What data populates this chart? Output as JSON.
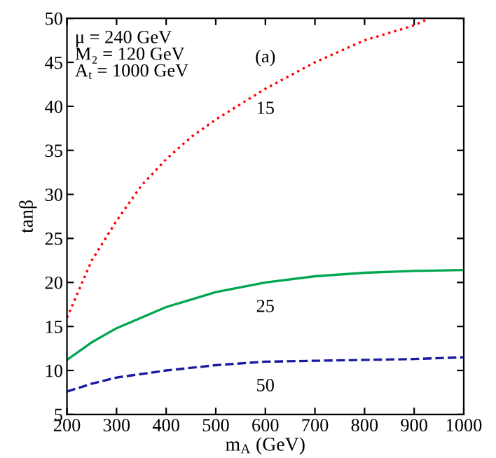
{
  "chart_data": {
    "type": "line",
    "xlabel": "m$_{A}$ (GeV)",
    "ylabel": "tanβ",
    "xlim": [
      200,
      1000
    ],
    "xticks": [
      200,
      300,
      400,
      500,
      600,
      700,
      800,
      900,
      1000
    ],
    "ylim": [
      5,
      50
    ],
    "yticks": [
      5,
      10,
      15,
      20,
      25,
      30,
      35,
      40,
      45,
      50
    ],
    "series": [
      {
        "color": "#ff0000",
        "line_style": "dotted",
        "x": [
          200,
          250,
          300,
          350,
          400,
          450,
          500,
          600,
          700,
          800,
          900,
          930
        ],
        "values": [
          16,
          22.5,
          27,
          31,
          34,
          36.5,
          38.5,
          42,
          45,
          47.5,
          49.2,
          50
        ]
      },
      {
        "color": "#00a651",
        "line_style": "solid",
        "x": [
          200,
          250,
          300,
          400,
          500,
          600,
          700,
          800,
          900,
          1000
        ],
        "values": [
          11.2,
          13.2,
          14.8,
          17.2,
          18.9,
          20,
          20.7,
          21.1,
          21.3,
          21.4
        ]
      },
      {
        "color": "#1a1aa0",
        "line_style": "dashed",
        "x": [
          200,
          250,
          300,
          400,
          500,
          600,
          700,
          800,
          900,
          1000
        ],
        "values": [
          7.6,
          8.5,
          9.2,
          10,
          10.6,
          11,
          11.1,
          11.2,
          11.3,
          11.5
        ]
      }
    ],
    "annotations": [
      "μ = 240 GeV\nM₂ = 120 GeV\nA$_{t}$ = 1000 GeV",
      "(a)",
      "15",
      "25",
      "50"
    ],
    "grid": false,
    "legend": false
  }
}
